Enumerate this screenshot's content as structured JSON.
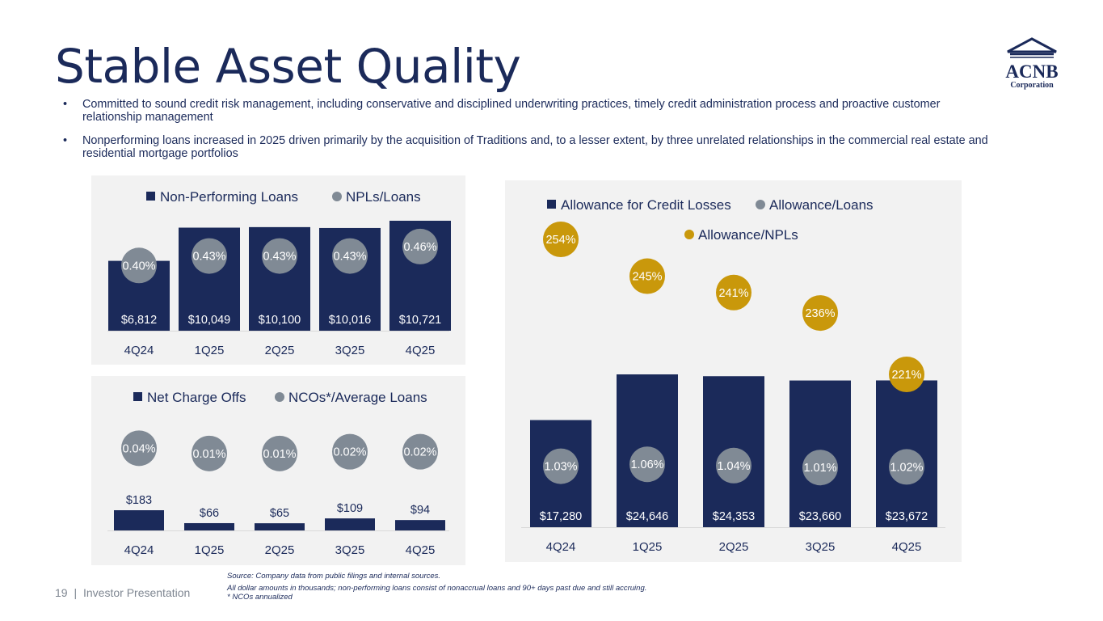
{
  "slide": {
    "title": "Stable Asset Quality",
    "bullets": [
      "Committed to sound credit risk management, including conservative and disciplined underwriting practices, timely credit administration process and proactive customer relationship management",
      "Nonperforming loans increased in 2025 driven primarily by the acquisition of Traditions and, to a lesser extent, by three unrelated relationships in the commercial real estate and residential mortgage portfolios"
    ],
    "logo": {
      "name": "ACNB",
      "subtitle": "Corporation"
    },
    "footer": {
      "page_number": "19",
      "separator": "|",
      "label": "Investor Presentation"
    },
    "footnotes": [
      "Source: Company data from public filings and internal sources.",
      "All dollar amounts in thousands; non-performing loans consist of nonaccrual loans and 90+ days past due and still accruing.",
      "* NCOs annualized"
    ]
  },
  "colors": {
    "navy": "#1b2a5a",
    "gray_bubble": "#808a95",
    "gold_bubble": "#c9980b",
    "panel_bg": "#f2f2f2",
    "tick_text": "#1b2a5a"
  },
  "chart_data": [
    {
      "id": "npl",
      "type": "bar",
      "categories": [
        "4Q24",
        "1Q25",
        "2Q25",
        "3Q25",
        "4Q25"
      ],
      "series": [
        {
          "name": "Non-Performing Loans",
          "kind": "bar",
          "values": [
            6812,
            10049,
            10100,
            10016,
            10721
          ],
          "labels": [
            "$6,812",
            "$10,049",
            "$10,100",
            "$10,016",
            "$10,721"
          ]
        },
        {
          "name": "NPLs/Loans",
          "kind": "bubble",
          "values": [
            0.4,
            0.43,
            0.43,
            0.43,
            0.46
          ],
          "labels": [
            "0.40%",
            "0.43%",
            "0.43%",
            "0.43%",
            "0.46%"
          ]
        }
      ],
      "legend": [
        {
          "label": "Non-Performing Loans",
          "marker": "square"
        },
        {
          "label": "NPLs/Loans",
          "marker": "circle"
        }
      ],
      "bar_ylim": [
        0,
        10721
      ],
      "bubble_ylim": [
        0.37,
        0.47
      ]
    },
    {
      "id": "nco",
      "type": "bar",
      "categories": [
        "4Q24",
        "1Q25",
        "2Q25",
        "3Q25",
        "4Q25"
      ],
      "series": [
        {
          "name": "Net Charge Offs",
          "kind": "bar",
          "values": [
            183,
            66,
            65,
            109,
            94
          ],
          "labels": [
            "$183",
            "$66",
            "$65",
            "$109",
            "$94"
          ]
        },
        {
          "name": "NCOs*/Average Loans",
          "kind": "bubble",
          "values": [
            0.04,
            0.01,
            0.01,
            0.02,
            0.02
          ],
          "labels": [
            "0.04%",
            "0.01%",
            "0.01%",
            "0.02%",
            "0.02%"
          ]
        }
      ],
      "legend": [
        {
          "label": "Net Charge Offs",
          "marker": "square"
        },
        {
          "label": "NCOs*/Average Loans",
          "marker": "circle"
        }
      ],
      "bar_ylim": [
        0,
        183
      ],
      "bubble_ylim": [
        0,
        0.06
      ]
    },
    {
      "id": "acl",
      "type": "bar",
      "categories": [
        "4Q24",
        "1Q25",
        "2Q25",
        "3Q25",
        "4Q25"
      ],
      "series": [
        {
          "name": "Allowance for Credit Losses",
          "kind": "bar",
          "values": [
            17280,
            24646,
            24353,
            23660,
            23672
          ],
          "labels": [
            "$17,280",
            "$24,646",
            "$24,353",
            "$23,660",
            "$23,672"
          ]
        },
        {
          "name": "Allowance/Loans",
          "kind": "bubble",
          "values": [
            1.03,
            1.06,
            1.04,
            1.01,
            1.02
          ],
          "labels": [
            "1.03%",
            "1.06%",
            "1.04%",
            "1.01%",
            "1.02%"
          ]
        },
        {
          "name": "Allowance/NPLs",
          "kind": "bubble-gold",
          "values": [
            254,
            245,
            241,
            236,
            221
          ],
          "labels": [
            "254%",
            "245%",
            "241%",
            "236%",
            "221%"
          ]
        }
      ],
      "legend": [
        {
          "label": "Allowance for Credit Losses",
          "marker": "square"
        },
        {
          "label": "Allowance/Loans",
          "marker": "circle"
        },
        {
          "label": "Allowance/NPLs",
          "marker": "circle-gold"
        }
      ],
      "bar_ylim": [
        0,
        24646
      ],
      "bubble_ylim": [
        0.9,
        1.2
      ],
      "gold_ylim": [
        221,
        254
      ]
    }
  ]
}
